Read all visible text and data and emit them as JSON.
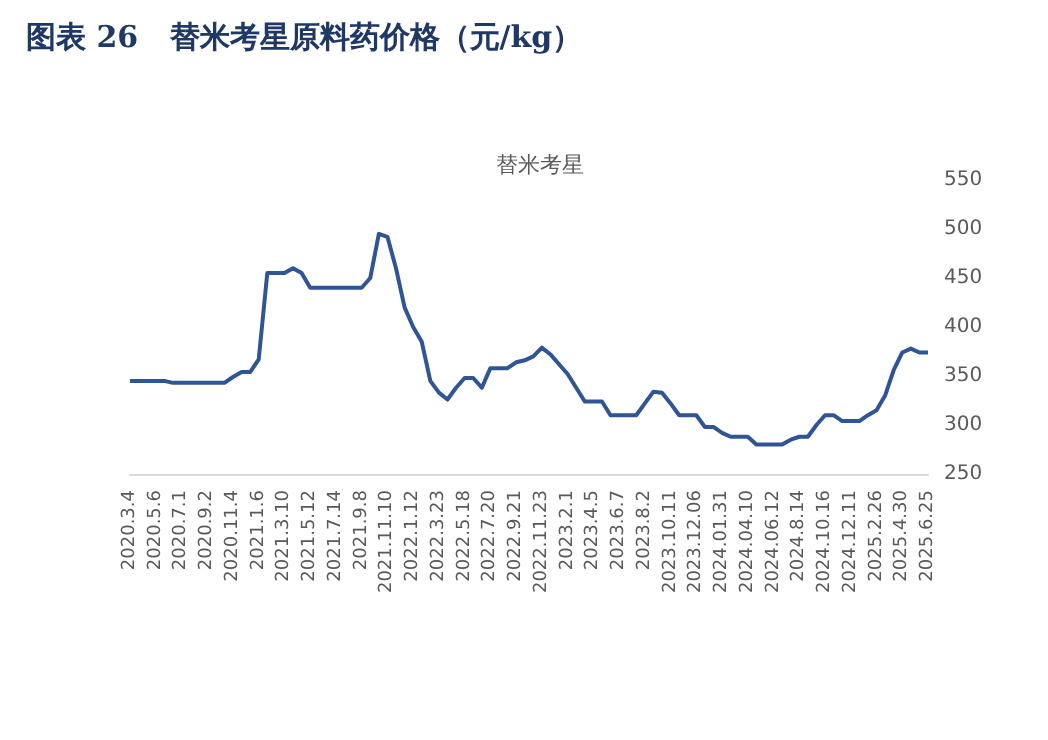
{
  "chart_data": {
    "type": "line",
    "title": "图表 26   替米考星原料药价格（元/kg）",
    "subtitle": "替米考星",
    "categories": [
      "2020.3.4",
      null,
      null,
      "2020.5.6",
      null,
      null,
      "2020.7.1",
      null,
      null,
      "2020.9.2",
      null,
      null,
      "2020.11.4",
      null,
      null,
      "2021.1.6",
      null,
      null,
      "2021.3.10",
      null,
      null,
      "2021.5.12",
      null,
      null,
      "2021.7.14",
      null,
      null,
      "2021.9.8",
      null,
      null,
      "2021.11.10",
      null,
      null,
      "2022.1.12",
      null,
      null,
      "2022.3.23",
      null,
      null,
      "2022.5.18",
      null,
      null,
      "2022.7.20",
      null,
      null,
      "2022.9.21",
      null,
      null,
      "2022.11.23",
      null,
      null,
      "2023.2.1",
      null,
      null,
      "2023.4.5",
      null,
      null,
      "2023.6.7",
      null,
      null,
      "2023.8.2",
      null,
      null,
      "2023.10.11",
      null,
      null,
      "2023.12.06",
      null,
      null,
      "2024.01.31",
      null,
      null,
      "2024.04.10",
      null,
      null,
      "2024.06.12",
      null,
      null,
      "2024.8.14",
      null,
      null,
      "2024.10.16",
      null,
      null,
      "2024.12.11",
      null,
      null,
      "2025.2.26",
      null,
      null,
      "2025.4.30",
      null,
      null,
      "2025.6.25"
    ],
    "series": [
      {
        "color": "#2f5597",
        "values": [
          345,
          345,
          345,
          345,
          345,
          343,
          343,
          343,
          343,
          343,
          343,
          343,
          349,
          354,
          354,
          367,
          455,
          455,
          455,
          460,
          455,
          440,
          440,
          440,
          440,
          440,
          440,
          440,
          450,
          495,
          492,
          460,
          420,
          400,
          385,
          345,
          333,
          326,
          338,
          348,
          348,
          338,
          358,
          358,
          358,
          364,
          366,
          370,
          379,
          372,
          362,
          352,
          338,
          324,
          324,
          324,
          310,
          310,
          310,
          310,
          322,
          334,
          333,
          322,
          310,
          310,
          310,
          298,
          298,
          292,
          288,
          288,
          288,
          280,
          280,
          280,
          280,
          285,
          288,
          288,
          300,
          310,
          310,
          304,
          304,
          304,
          310,
          315,
          330,
          356,
          374,
          378,
          374,
          374
        ]
      }
    ],
    "ylim": [
      250,
      550
    ],
    "yticks": [
      250,
      300,
      350,
      400,
      450,
      500,
      550
    ],
    "grid": false,
    "marker": "none",
    "line_style": "solid"
  }
}
